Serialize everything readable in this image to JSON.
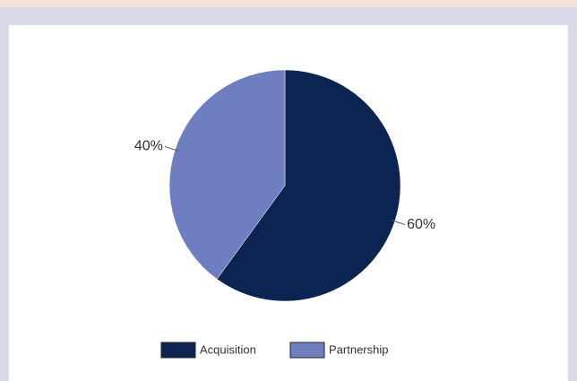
{
  "chart_data": {
    "type": "pie",
    "categories": [
      "Acquisition",
      "Partnership"
    ],
    "values": [
      60,
      40
    ],
    "value_labels": [
      "60%",
      "40%"
    ],
    "colors": [
      "#0b2452",
      "#6f7ec0"
    ],
    "legend": "bottom"
  }
}
